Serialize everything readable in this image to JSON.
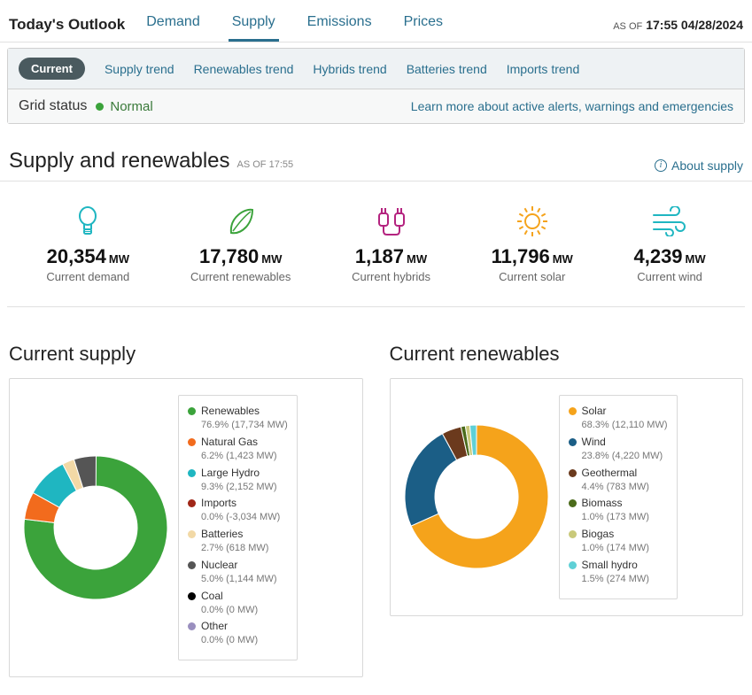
{
  "header": {
    "title": "Today's Outlook",
    "tabs": [
      "Demand",
      "Supply",
      "Emissions",
      "Prices"
    ],
    "active_tab": "Supply",
    "asof_label": "AS OF",
    "asof_time": "17:55 04/28/2024"
  },
  "subtabs": {
    "active": "Current",
    "items": [
      "Supply trend",
      "Renewables trend",
      "Hybrids trend",
      "Batteries trend",
      "Imports trend"
    ]
  },
  "grid_status": {
    "label": "Grid status",
    "state": "Normal",
    "learn": "Learn more about active alerts, warnings and emergencies",
    "dot_color": "#3ba33b"
  },
  "section": {
    "title": "Supply and renewables",
    "asof": "AS OF 17:55",
    "about": "About supply"
  },
  "metrics": [
    {
      "value": "20,354",
      "unit": "MW",
      "label": "Current demand",
      "icon": "bulb",
      "color": "#1fb6c1"
    },
    {
      "value": "17,780",
      "unit": "MW",
      "label": "Current renewables",
      "icon": "leaf",
      "color": "#3ba33b"
    },
    {
      "value": "1,187",
      "unit": "MW",
      "label": "Current hybrids",
      "icon": "plug",
      "color": "#b4237f"
    },
    {
      "value": "11,796",
      "unit": "MW",
      "label": "Current solar",
      "icon": "sun",
      "color": "#f5a31b"
    },
    {
      "value": "4,239",
      "unit": "MW",
      "label": "Current wind",
      "icon": "wind",
      "color": "#1fb6c1"
    }
  ],
  "supply_chart": {
    "title": "Current supply",
    "inner_ratio": 0.58,
    "series": [
      {
        "name": "Renewables",
        "pct": 76.9,
        "mw": "17,734 MW",
        "color": "#3ba33b"
      },
      {
        "name": "Natural Gas",
        "pct": 6.2,
        "mw": "1,423 MW",
        "color": "#f26b1d"
      },
      {
        "name": "Large Hydro",
        "pct": 9.3,
        "mw": "2,152 MW",
        "color": "#1fb6c1"
      },
      {
        "name": "Imports",
        "pct": 0.0,
        "mw": "-3,034 MW",
        "color": "#a02617"
      },
      {
        "name": "Batteries",
        "pct": 2.7,
        "mw": "618 MW",
        "color": "#f2d9a6"
      },
      {
        "name": "Nuclear",
        "pct": 5.0,
        "mw": "1,144 MW",
        "color": "#555555"
      },
      {
        "name": "Coal",
        "pct": 0.0,
        "mw": "0 MW",
        "color": "#000000"
      },
      {
        "name": "Other",
        "pct": 0.0,
        "mw": "0 MW",
        "color": "#9a8fbf"
      }
    ]
  },
  "renew_chart": {
    "title": "Current renewables",
    "inner_ratio": 0.58,
    "series": [
      {
        "name": "Solar",
        "pct": 68.3,
        "mw": "12,110 MW",
        "color": "#f5a31b"
      },
      {
        "name": "Wind",
        "pct": 23.8,
        "mw": "4,220 MW",
        "color": "#1b5e86"
      },
      {
        "name": "Geothermal",
        "pct": 4.4,
        "mw": "783 MW",
        "color": "#6b3a1d"
      },
      {
        "name": "Biomass",
        "pct": 1.0,
        "mw": "173 MW",
        "color": "#4b6b1b"
      },
      {
        "name": "Biogas",
        "pct": 1.0,
        "mw": "174 MW",
        "color": "#c9c97a"
      },
      {
        "name": "Small hydro",
        "pct": 1.5,
        "mw": "274 MW",
        "color": "#5fd0d6"
      }
    ]
  }
}
